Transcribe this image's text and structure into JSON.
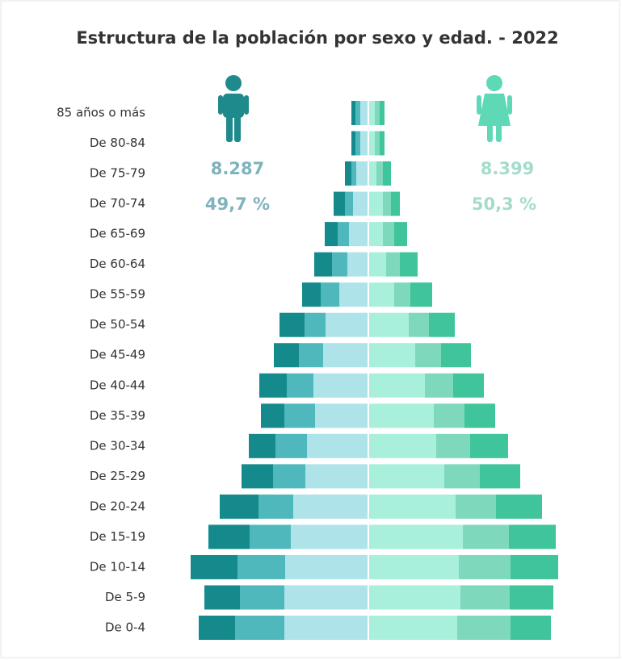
{
  "chart_data": {
    "type": "pyramid",
    "title": "Estructura de la población por sexo y edad. - 2022",
    "categories": [
      "85 años o más",
      "De 80-84",
      "De 75-79",
      "De 70-74",
      "De 65-69",
      "De 60-64",
      "De 55-59",
      "De 50-54",
      "De 45-49",
      "De 40-44",
      "De 35-39",
      "De 30-34",
      "De 25-29",
      "De 20-24",
      "De 15-19",
      "De 10-14",
      "De 5-9",
      "De 0-4"
    ],
    "series": [
      {
        "side": "left",
        "color": "#aee3ea",
        "values": [
          9,
          9,
          14,
          18,
          23,
          25,
          35,
          52,
          55,
          67,
          65,
          75,
          77,
          92,
          95,
          102,
          103,
          103
        ]
      },
      {
        "side": "left",
        "color": "#4fb8bd",
        "values": [
          6,
          6,
          6,
          10,
          14,
          19,
          23,
          26,
          30,
          33,
          38,
          39,
          40,
          43,
          51,
          59,
          55,
          61
        ]
      },
      {
        "side": "left",
        "color": "#148a8c",
        "values": [
          5,
          5,
          8,
          14,
          16,
          22,
          23,
          31,
          31,
          34,
          29,
          33,
          39,
          48,
          51,
          58,
          44,
          45
        ]
      },
      {
        "side": "right",
        "color": "#a8f0dc",
        "values": [
          7,
          7,
          9,
          17,
          17,
          21,
          31,
          49,
          57,
          69,
          80,
          83,
          93,
          107,
          116,
          111,
          113,
          109
        ]
      },
      {
        "side": "right",
        "color": "#7ed8bc",
        "values": [
          6,
          6,
          8,
          10,
          14,
          17,
          20,
          25,
          32,
          35,
          38,
          42,
          44,
          50,
          57,
          64,
          61,
          66
        ]
      },
      {
        "side": "right",
        "color": "#3fc49b",
        "values": [
          6,
          6,
          10,
          11,
          16,
          22,
          27,
          32,
          37,
          38,
          38,
          47,
          50,
          57,
          58,
          59,
          54,
          50
        ]
      }
    ],
    "male_total": {
      "value": 8287,
      "label": "8.287"
    },
    "male_share": {
      "value": 49.7,
      "label": "49,7 %"
    },
    "female_total": {
      "value": 8399,
      "label": "8.399"
    },
    "female_share": {
      "value": 50.3,
      "label": "50,3 %"
    }
  }
}
